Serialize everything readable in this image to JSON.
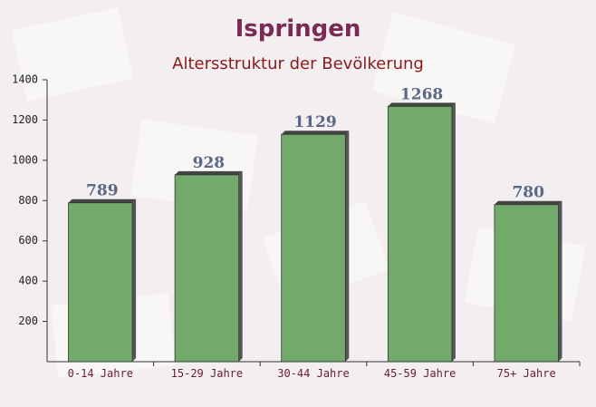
{
  "chart_data": {
    "type": "bar",
    "title": "Ispringen",
    "subtitle": "Altersstruktur der Bevölkerung",
    "categories": [
      "0-14 Jahre",
      "15-29 Jahre",
      "30-44 Jahre",
      "45-59 Jahre",
      "75+ Jahre"
    ],
    "values": [
      789,
      928,
      1129,
      1268,
      780
    ],
    "color": "#6aa563",
    "ylim": [
      0,
      1400
    ],
    "yticks": [
      200,
      400,
      600,
      800,
      1000,
      1200,
      1400
    ]
  }
}
